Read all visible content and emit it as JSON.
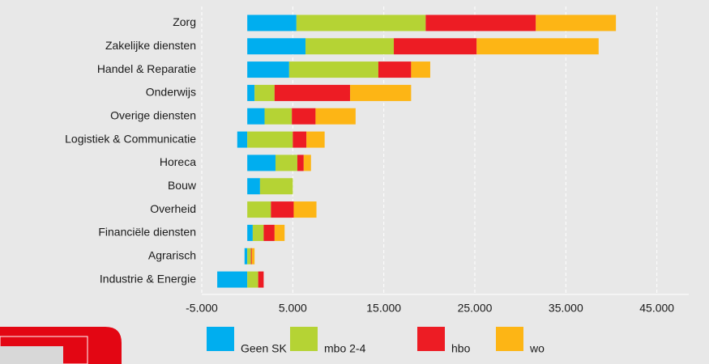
{
  "chart_data": {
    "type": "stacked-bar-horizontal",
    "categories": [
      "Zorg",
      "Zakelijke diensten",
      "Handel & Reparatie",
      "Onderwijs",
      "Overige diensten",
      "Logistiek & Communicatie",
      "Horeca",
      "Bouw",
      "Overheid",
      "Financiële diensten",
      "Agrarisch",
      "Industrie & Energie"
    ],
    "series": [
      {
        "name": "Geen SK",
        "color": "#00aeef",
        "values": [
          5400,
          6400,
          4600,
          800,
          1900,
          -1100,
          3100,
          1400,
          0,
          600,
          -300,
          -3300
        ]
      },
      {
        "name": "mbo 2-4",
        "color": "#b5d334",
        "values": [
          14200,
          9700,
          9800,
          2200,
          3000,
          5000,
          2400,
          3600,
          2600,
          1200,
          400,
          1200
        ]
      },
      {
        "name": "hbo",
        "color": "#ed1c24",
        "values": [
          12100,
          9100,
          3600,
          8300,
          2600,
          1500,
          700,
          0,
          2500,
          1200,
          100,
          600
        ]
      },
      {
        "name": "wo",
        "color": "#fdb515",
        "values": [
          8800,
          13400,
          2100,
          6700,
          4400,
          2000,
          800,
          0,
          2500,
          1100,
          300,
          0
        ]
      }
    ],
    "xlim": [
      -5000,
      48500
    ],
    "xticks": [
      {
        "value": -5000,
        "label": "-5.000"
      },
      {
        "value": 5000,
        "label": "5.000"
      },
      {
        "value": 15000,
        "label": "15.000"
      },
      {
        "value": 25000,
        "label": "25.000"
      },
      {
        "value": 35000,
        "label": "35.000"
      },
      {
        "value": 45000,
        "label": "45.000"
      }
    ],
    "grid": true,
    "legend": "bottom"
  }
}
